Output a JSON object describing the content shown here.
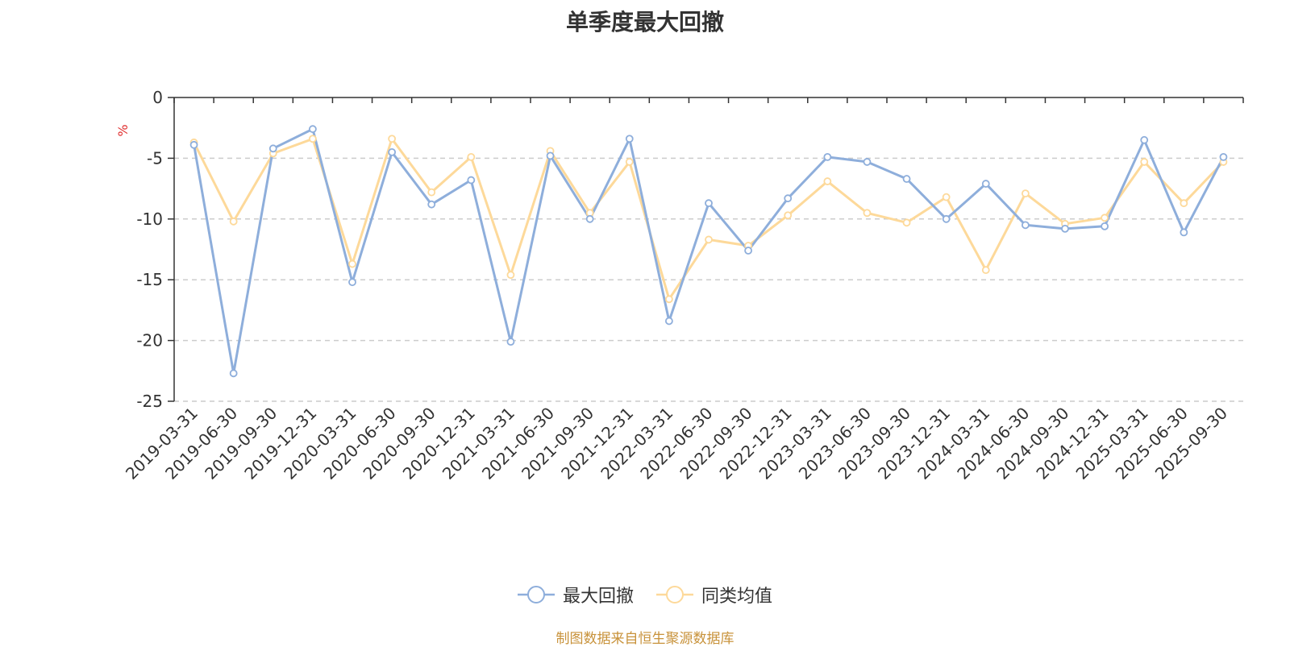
{
  "title": "单季度最大回撤",
  "source_note": "制图数据来自恒生聚源数据库",
  "colors": {
    "series_1": "#8eaedb",
    "series_2": "#fdd99a",
    "grid": "#cccccc",
    "axis": "#333333",
    "ylabel": "#e03030",
    "source": "#c8923a"
  },
  "chart_data": {
    "type": "line",
    "title": "单季度最大回撤",
    "xlabel": "",
    "ylabel": "%",
    "ylim": [
      -25,
      0
    ],
    "yticks": [
      0,
      -5,
      -10,
      -15,
      -20,
      -25
    ],
    "grid": true,
    "legend_position": "bottom-center",
    "categories": [
      "2019-03-31",
      "2019-06-30",
      "2019-09-30",
      "2019-12-31",
      "2020-03-31",
      "2020-06-30",
      "2020-09-30",
      "2020-12-31",
      "2021-03-31",
      "2021-06-30",
      "2021-09-30",
      "2021-12-31",
      "2022-03-31",
      "2022-06-30",
      "2022-09-30",
      "2022-12-31",
      "2023-03-31",
      "2023-06-30",
      "2023-09-30",
      "2023-12-31",
      "2024-03-31",
      "2024-06-30",
      "2024-09-30",
      "2024-12-31",
      "2025-03-31",
      "2025-06-30",
      "2025-09-30"
    ],
    "series": [
      {
        "name": "最大回撤",
        "color": "#8eaedb",
        "values": [
          -3.9,
          -22.7,
          -4.2,
          -2.6,
          -15.2,
          -4.5,
          -8.8,
          -6.8,
          -20.1,
          -4.8,
          -10.0,
          -3.4,
          -18.4,
          -8.7,
          -12.6,
          -8.3,
          -4.9,
          -5.3,
          -6.7,
          -10.0,
          -7.1,
          -10.5,
          -10.8,
          -10.6,
          -3.5,
          -11.1,
          -4.9
        ]
      },
      {
        "name": "同类均值",
        "color": "#fdd99a",
        "values": [
          -3.7,
          -10.2,
          -4.6,
          -3.4,
          -13.7,
          -3.4,
          -7.8,
          -4.9,
          -14.6,
          -4.4,
          -9.5,
          -5.3,
          -16.6,
          -11.7,
          -12.2,
          -9.7,
          -6.9,
          -9.5,
          -10.3,
          -8.2,
          -14.2,
          -7.9,
          -10.4,
          -9.9,
          -5.3,
          -8.7,
          -5.3
        ]
      }
    ]
  },
  "legend": {
    "items": [
      {
        "label": "最大回撤"
      },
      {
        "label": "同类均值"
      }
    ]
  }
}
